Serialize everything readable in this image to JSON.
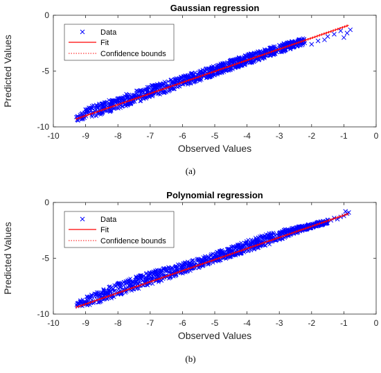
{
  "figure": {
    "panels": [
      {
        "label": "(a)"
      },
      {
        "label": "(b)"
      }
    ]
  },
  "chart_data": [
    {
      "type": "scatter",
      "title": "Gaussian regression",
      "xlabel": "Observed Values",
      "ylabel": "Predicted Values",
      "xlim": [
        -10,
        0
      ],
      "ylim": [
        -10,
        0
      ],
      "xticks": [
        "-10",
        "-9",
        "-8",
        "-7",
        "-6",
        "-5",
        "-4",
        "-3",
        "-2",
        "-1",
        "0"
      ],
      "yticks": [
        "0",
        "-5",
        "-10"
      ],
      "grid": false,
      "legend": {
        "placement": "top-left",
        "entries": [
          "Data",
          "Fit",
          "Confidence bounds"
        ]
      },
      "colors": {
        "data": "#0000ff",
        "fit": "#ff0000",
        "bounds": "#ff0000"
      },
      "fit": {
        "x": [
          -9.3,
          -0.85
        ],
        "y": [
          -9.3,
          -0.9
        ]
      },
      "data_envelope": {
        "x": [
          -9.3,
          -9.0,
          -8.5,
          -8.0,
          -7.5,
          -7.0,
          -6.5,
          -6.0,
          -5.5,
          -5.0,
          -4.5,
          -4.0,
          -3.5,
          -3.0,
          -2.5,
          -2.2
        ],
        "y_upper": [
          -8.7,
          -8.3,
          -7.8,
          -7.3,
          -6.8,
          -6.3,
          -5.9,
          -5.4,
          -5.0,
          -4.5,
          -4.0,
          -3.5,
          -3.1,
          -2.6,
          -2.2,
          -2.0
        ],
        "y_lower": [
          -9.5,
          -9.3,
          -8.9,
          -8.4,
          -7.9,
          -7.4,
          -6.9,
          -6.4,
          -5.9,
          -5.4,
          -4.9,
          -4.4,
          -3.9,
          -3.4,
          -2.9,
          -2.6
        ]
      },
      "sparse_points": {
        "x": [
          -2.0,
          -1.8,
          -1.6,
          -1.5,
          -1.3,
          -1.1,
          -1.0,
          -0.9,
          -0.8
        ],
        "y": [
          -2.6,
          -2.3,
          -2.2,
          -1.9,
          -1.7,
          -1.4,
          -2.0,
          -1.6,
          -1.3
        ]
      }
    },
    {
      "type": "scatter",
      "title": "Polynomial regression",
      "xlabel": "Observed Values",
      "ylabel": "Predicted Values",
      "xlim": [
        -10,
        0
      ],
      "ylim": [
        -10,
        0
      ],
      "xticks": [
        "-10",
        "-9",
        "-8",
        "-7",
        "-6",
        "-5",
        "-4",
        "-3",
        "-2",
        "-1",
        "0"
      ],
      "yticks": [
        "0",
        "-5",
        "-10"
      ],
      "grid": false,
      "legend": {
        "placement": "top-left",
        "entries": [
          "Data",
          "Fit",
          "Confidence bounds"
        ]
      },
      "colors": {
        "data": "#0000ff",
        "fit": "#ff0000",
        "bounds": "#ff0000"
      },
      "fit": {
        "x": [
          -9.3,
          -0.85
        ],
        "y": [
          -9.4,
          -1.0
        ]
      },
      "data_envelope": {
        "x": [
          -9.3,
          -9.0,
          -8.5,
          -8.0,
          -7.5,
          -7.0,
          -6.5,
          -6.0,
          -5.5,
          -5.0,
          -4.5,
          -4.0,
          -3.5,
          -3.0,
          -2.5,
          -2.0,
          -1.5
        ],
        "y_upper": [
          -8.9,
          -8.4,
          -7.8,
          -7.2,
          -6.7,
          -6.2,
          -5.8,
          -5.4,
          -5.0,
          -4.5,
          -4.0,
          -3.4,
          -2.9,
          -2.5,
          -2.2,
          -1.9,
          -1.5
        ],
        "y_lower": [
          -9.5,
          -9.3,
          -8.9,
          -8.4,
          -7.9,
          -7.4,
          -6.9,
          -6.4,
          -5.9,
          -5.4,
          -4.9,
          -4.4,
          -4.0,
          -3.4,
          -2.8,
          -2.3,
          -1.9
        ]
      },
      "sparse_points": {
        "x": [
          -1.4,
          -1.3,
          -1.2,
          -1.1,
          -1.0,
          -0.95,
          -0.9,
          -0.85
        ],
        "y": [
          -1.6,
          -1.4,
          -1.5,
          -1.3,
          -1.2,
          -0.8,
          -1.0,
          -0.9
        ]
      }
    }
  ]
}
